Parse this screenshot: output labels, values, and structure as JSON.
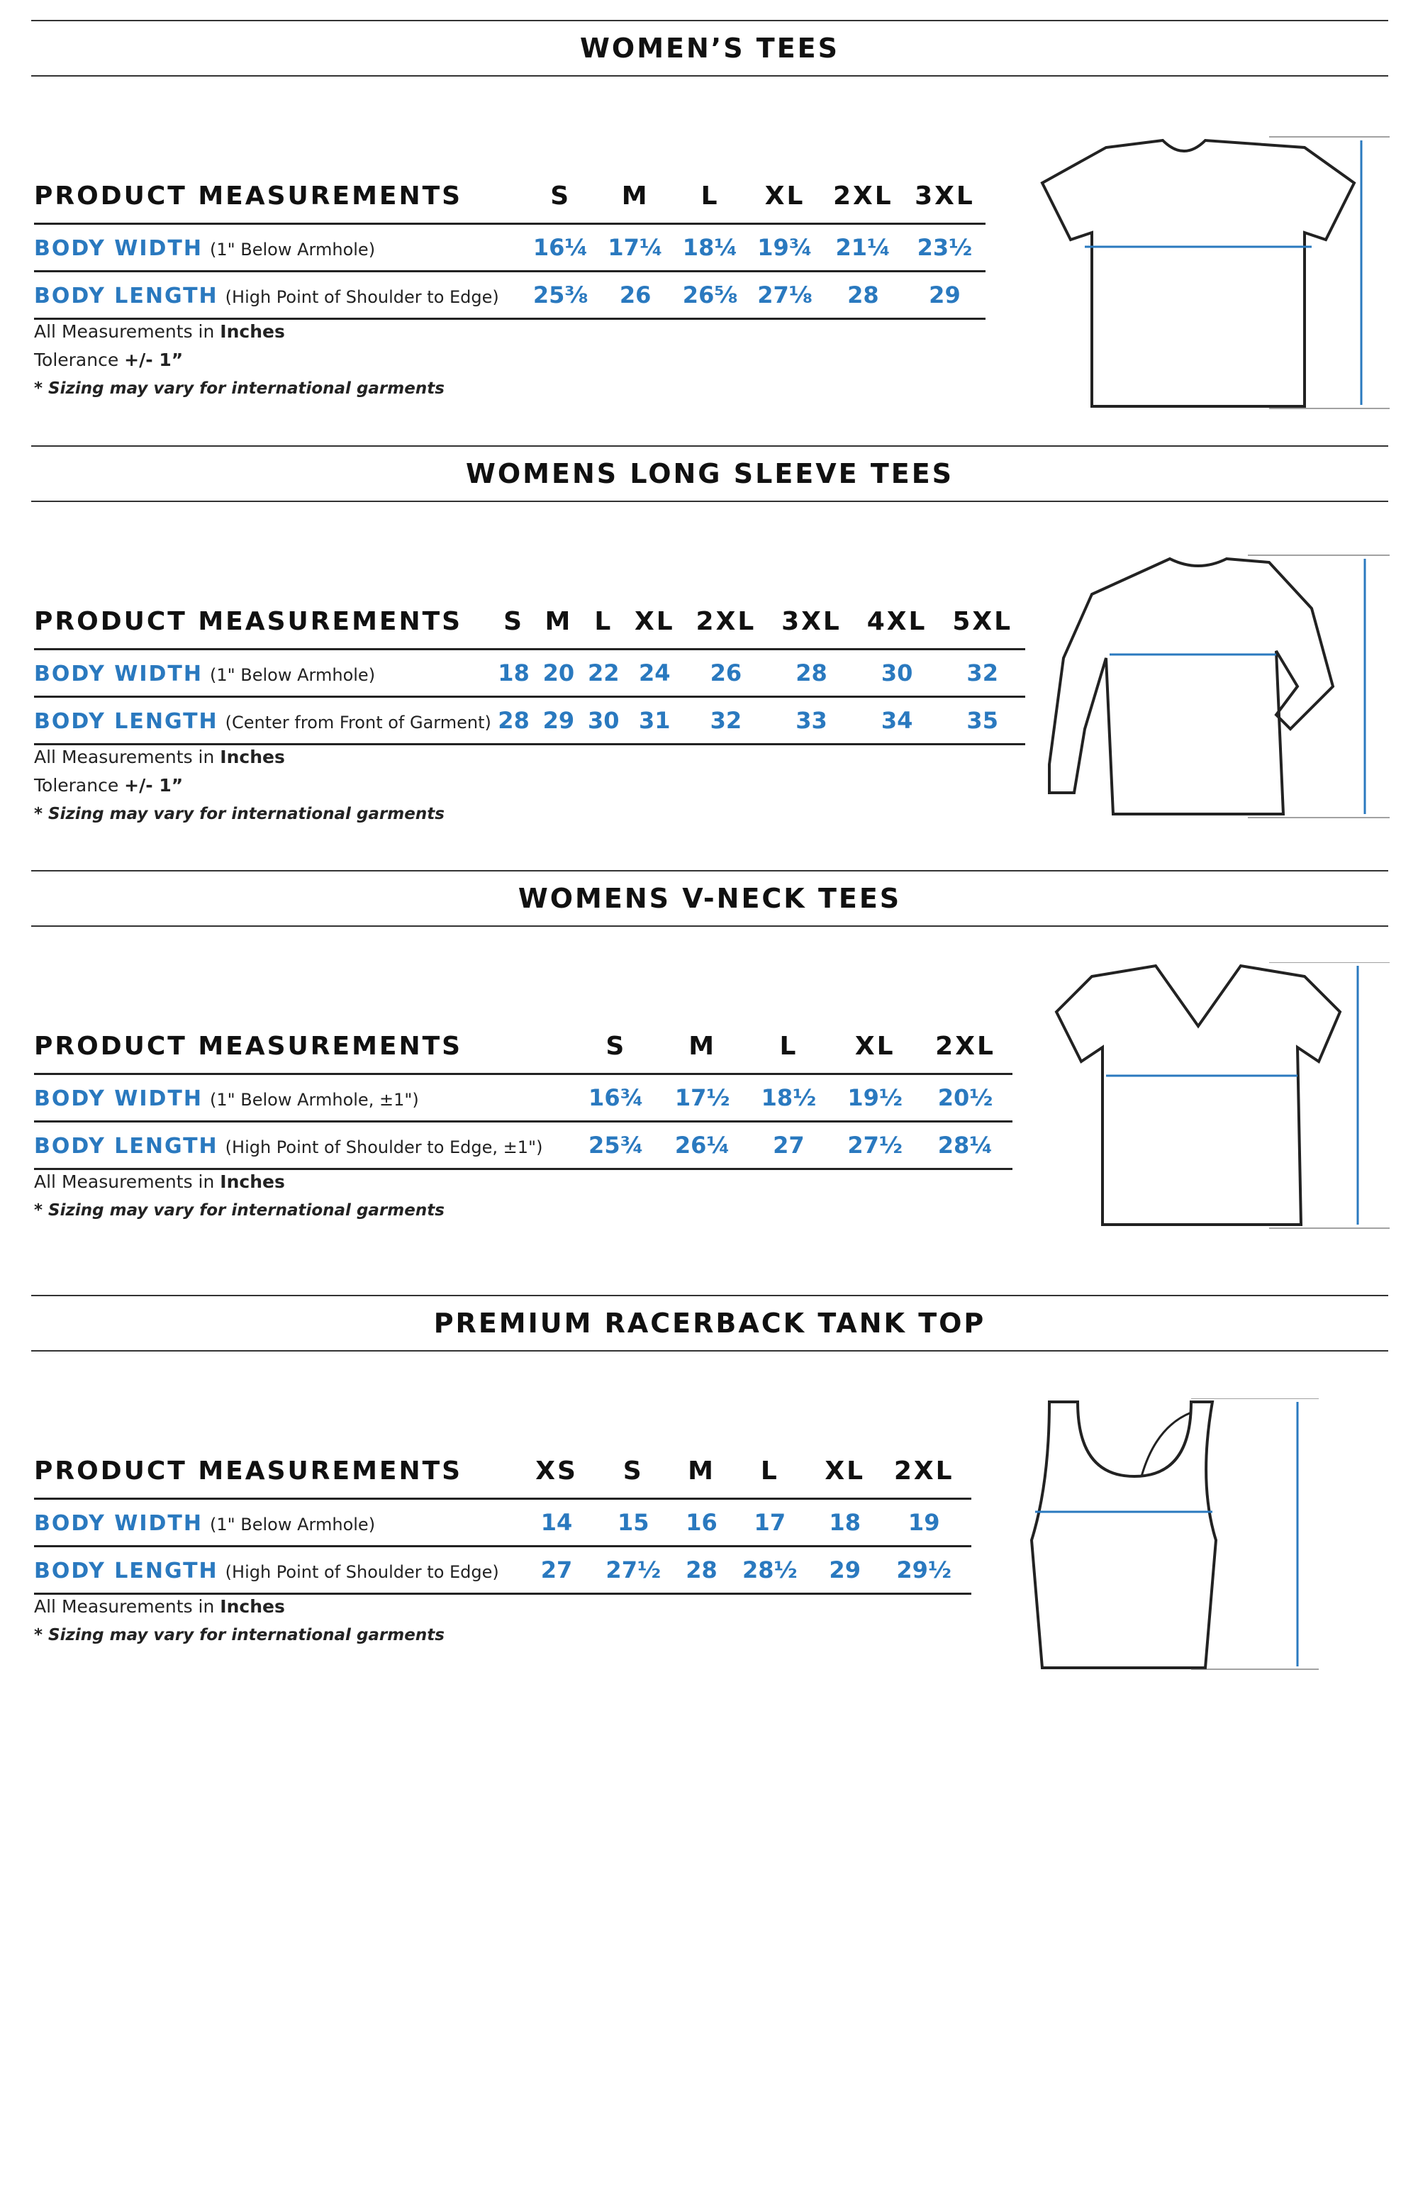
{
  "colors": {
    "accent_blue": "#2a79bf",
    "text": "#111111",
    "rule": "#333333"
  },
  "sections": [
    {
      "title": "WOMEN’S TEES",
      "header": "PRODUCT MEASUREMENTS",
      "sizes": [
        "S",
        "M",
        "L",
        "XL",
        "2XL",
        "3XL"
      ],
      "rows": [
        {
          "label": "BODY WIDTH",
          "note": "(1\" Below Armhole)",
          "values": [
            "16¼",
            "17¼",
            "18¼",
            "19¾",
            "21¼",
            "23½"
          ]
        },
        {
          "label": "BODY LENGTH",
          "note": "(High Point of Shoulder to Edge)",
          "values": [
            "25⅜",
            "26",
            "26⅝",
            "27⅛",
            "28",
            "29"
          ]
        }
      ],
      "units_prefix": "All Measurements in",
      "units": "Inches",
      "tolerance_prefix": "Tolerance",
      "tolerance": "+/- 1”",
      "disclaimer": "* Sizing may vary for international garments",
      "garment_icon": "tshirt-icon"
    },
    {
      "title": "WOMENS LONG SLEEVE TEES",
      "header": "PRODUCT MEASUREMENTS",
      "sizes": [
        "S",
        "M",
        "L",
        "XL",
        "2XL",
        "3XL",
        "4XL",
        "5XL"
      ],
      "rows": [
        {
          "label": "BODY WIDTH",
          "note": "(1\" Below Armhole)",
          "values": [
            "18",
            "20",
            "22",
            "24",
            "26",
            "28",
            "30",
            "32"
          ]
        },
        {
          "label": "BODY LENGTH",
          "note": "(Center from Front of Garment)",
          "values": [
            "28",
            "29",
            "30",
            "31",
            "32",
            "33",
            "34",
            "35"
          ]
        }
      ],
      "units_prefix": "All Measurements in",
      "units": "Inches",
      "tolerance_prefix": "Tolerance",
      "tolerance": "+/- 1”",
      "disclaimer": "* Sizing may vary for international garments",
      "garment_icon": "long-sleeve-icon"
    },
    {
      "title": "WOMENS V-NECK TEES",
      "header": "PRODUCT MEASUREMENTS",
      "sizes": [
        "S",
        "M",
        "L",
        "XL",
        "2XL"
      ],
      "rows": [
        {
          "label": "BODY WIDTH",
          "note": "(1\" Below Armhole, ±1\")",
          "values": [
            "16¾",
            "17½",
            "18½",
            "19½",
            "20½"
          ]
        },
        {
          "label": "BODY LENGTH",
          "note": "(High Point of Shoulder to Edge, ±1\")",
          "values": [
            "25¾",
            "26¼",
            "27",
            "27½",
            "28¼"
          ]
        }
      ],
      "units_prefix": "All Measurements in",
      "units": "Inches",
      "disclaimer": "* Sizing may vary for international garments",
      "garment_icon": "vneck-icon"
    },
    {
      "title": "PREMIUM RACERBACK TANK TOP",
      "header": "PRODUCT MEASUREMENTS",
      "sizes": [
        "XS",
        "S",
        "M",
        "L",
        "XL",
        "2XL"
      ],
      "rows": [
        {
          "label": "BODY WIDTH",
          "note": "(1\" Below Armhole)",
          "values": [
            "14",
            "15",
            "16",
            "17",
            "18",
            "19"
          ]
        },
        {
          "label": "BODY LENGTH",
          "note": "(High Point of Shoulder to Edge)",
          "values": [
            "27",
            "27½",
            "28",
            "28½",
            "29",
            "29½"
          ]
        }
      ],
      "units_prefix": "All Measurements in",
      "units": "Inches",
      "disclaimer": "* Sizing may vary for international garments",
      "garment_icon": "tank-top-icon"
    }
  ]
}
